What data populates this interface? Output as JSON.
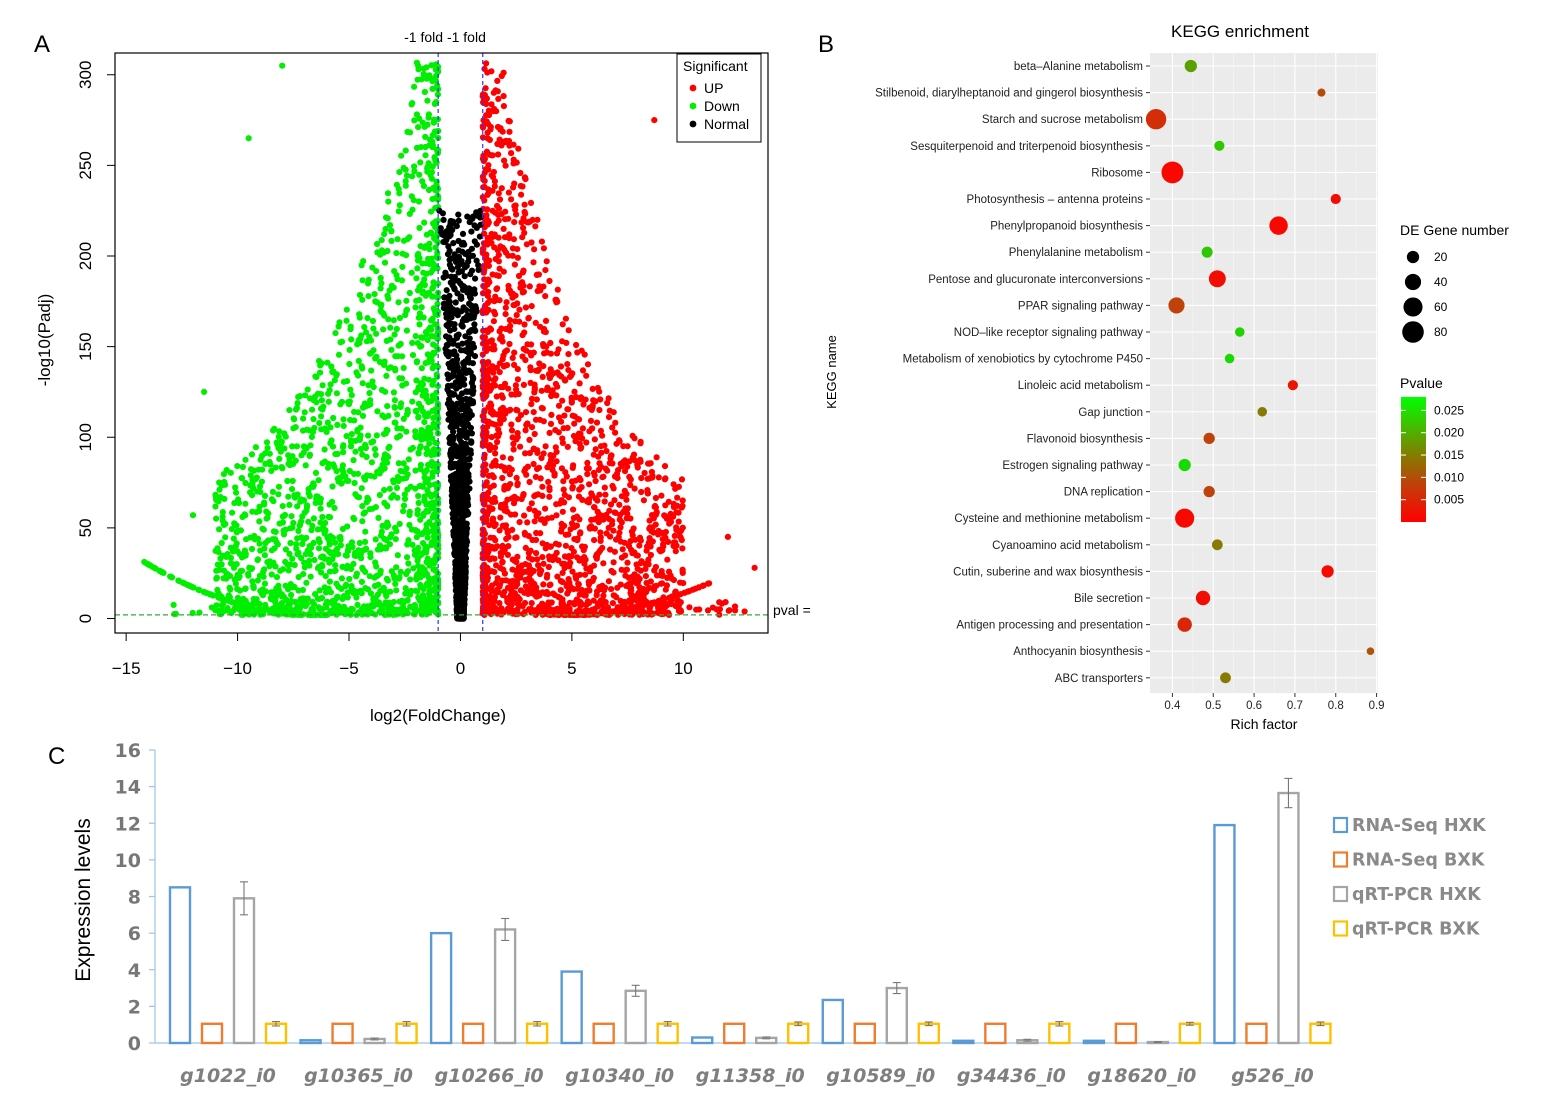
{
  "chart_data": [
    {
      "panel": "A",
      "type": "scatter",
      "subtype": "volcano",
      "top_label": "-1 fold -1 fold",
      "xlabel": "log2(FoldChange)",
      "ylabel": "-log10(Padj)",
      "xlim": [
        -15.5,
        13.8
      ],
      "ylim": [
        -8,
        312
      ],
      "x_ticks": [
        -15,
        -10,
        -5,
        0,
        5,
        10
      ],
      "x_tick_labels": [
        "−15",
        "−10",
        "−5",
        "0",
        "5",
        "10"
      ],
      "y_ticks": [
        0,
        50,
        100,
        150,
        200,
        250,
        300
      ],
      "fold_thresholds": [
        -1,
        1
      ],
      "pvalue_threshold": 2,
      "pval_label": "pval =",
      "legend": {
        "title": "Significant",
        "items": [
          "UP",
          "Down",
          "Normal"
        ],
        "position": "top-right"
      },
      "colors": {
        "UP": "#ff0000",
        "Down": "#00ee00",
        "Normal": "#000000",
        "fold_line": "#3333ff",
        "pval_line": "#33aa33"
      },
      "series_summary": {
        "UP": "log2FC > 1, -log10(Padj) up to ~305, x up to ~13",
        "Down": "log2FC < -1, -log10(Padj) up to ~305, x down to ~-14",
        "Normal": "-1 <= log2FC <= 1, -log10(Padj) up to ~225"
      }
    },
    {
      "panel": "B",
      "type": "scatter",
      "subtype": "bubble",
      "title": "KEGG enrichment",
      "xlabel": "Rich factor",
      "ylabel": "KEGG name",
      "xlim": [
        0.35,
        0.9
      ],
      "x_ticks": [
        0.4,
        0.5,
        0.6,
        0.7,
        0.8,
        0.9
      ],
      "x_tick_labels": [
        "0.4",
        "0.5",
        "0.6",
        "0.7",
        "0.8",
        "0.9"
      ],
      "size_legend_title": "DE Gene number",
      "size_legend": [
        20,
        40,
        60,
        80
      ],
      "color_legend_title": "Pvalue",
      "color_legend_ticks": [
        0.025,
        0.02,
        0.015,
        0.01,
        0.005
      ],
      "color_legend_labels": [
        "0.025",
        "0.020",
        "0.015",
        "0.010",
        "0.005"
      ],
      "color_range": [
        0.0,
        0.028
      ],
      "terms": [
        {
          "name": "beta–Alanine metabolism",
          "rich": 0.445,
          "genes": 20,
          "p": 0.02
        },
        {
          "name": "Stilbenoid, diarylheptanoid and gingerol biosynthesis",
          "rich": 0.765,
          "genes": 6,
          "p": 0.011
        },
        {
          "name": "Starch and sucrose metabolism",
          "rich": 0.36,
          "genes": 70,
          "p": 0.007
        },
        {
          "name": "Sesquiterpenoid and triterpenoid biosynthesis",
          "rich": 0.515,
          "genes": 12,
          "p": 0.024
        },
        {
          "name": "Ribosome",
          "rich": 0.4,
          "genes": 82,
          "p": 0.001
        },
        {
          "name": "Photosynthesis – antenna proteins",
          "rich": 0.8,
          "genes": 12,
          "p": 0.002
        },
        {
          "name": "Phenylpropanoid biosynthesis",
          "rich": 0.66,
          "genes": 55,
          "p": 0.001
        },
        {
          "name": "Phenylalanine metabolism",
          "rich": 0.485,
          "genes": 15,
          "p": 0.024
        },
        {
          "name": "Pentose and glucuronate interconversions",
          "rich": 0.51,
          "genes": 45,
          "p": 0.002
        },
        {
          "name": "PPAR signaling pathway",
          "rich": 0.41,
          "genes": 40,
          "p": 0.01
        },
        {
          "name": "NOD–like receptor signaling pathway",
          "rich": 0.565,
          "genes": 10,
          "p": 0.025
        },
        {
          "name": "Metabolism of xenobiotics by cytochrome P450",
          "rich": 0.54,
          "genes": 10,
          "p": 0.026
        },
        {
          "name": "Linoleic acid metabolism",
          "rich": 0.695,
          "genes": 12,
          "p": 0.003
        },
        {
          "name": "Gap junction",
          "rich": 0.62,
          "genes": 10,
          "p": 0.016
        },
        {
          "name": "Flavonoid biosynthesis",
          "rich": 0.49,
          "genes": 16,
          "p": 0.01
        },
        {
          "name": "Estrogen signaling pathway",
          "rich": 0.43,
          "genes": 20,
          "p": 0.026
        },
        {
          "name": "DNA replication",
          "rich": 0.49,
          "genes": 16,
          "p": 0.01
        },
        {
          "name": "Cysteine and methionine metabolism",
          "rich": 0.43,
          "genes": 60,
          "p": 0.001
        },
        {
          "name": "Cyanoamino acid metabolism",
          "rich": 0.51,
          "genes": 14,
          "p": 0.016
        },
        {
          "name": "Cutin, suberine and wax biosynthesis",
          "rich": 0.78,
          "genes": 20,
          "p": 0.001
        },
        {
          "name": "Bile secretion",
          "rich": 0.475,
          "genes": 30,
          "p": 0.002
        },
        {
          "name": "Antigen processing and presentation",
          "rich": 0.43,
          "genes": 30,
          "p": 0.006
        },
        {
          "name": "Anthocyanin biosynthesis",
          "rich": 0.885,
          "genes": 5,
          "p": 0.012
        },
        {
          "name": "ABC transporters",
          "rich": 0.53,
          "genes": 14,
          "p": 0.016
        }
      ]
    },
    {
      "panel": "C",
      "type": "bar",
      "ylabel": "Expression levels",
      "ylim": [
        0,
        16
      ],
      "y_ticks": [
        0,
        2,
        4,
        6,
        8,
        10,
        12,
        14,
        16
      ],
      "categories": [
        "g1022_i0",
        "g10365_i0",
        "g10266_i0",
        "g10340_i0",
        "g11358_i0",
        "g10589_i0",
        "g34436_i0",
        "g18620_i0",
        "g526_i0"
      ],
      "series": [
        {
          "name": "RNA-Seq HXK",
          "color": "#5b9bd5",
          "values": [
            8.5,
            0.15,
            6.0,
            3.9,
            0.3,
            2.35,
            0.12,
            0.12,
            11.9
          ]
        },
        {
          "name": "RNA-Seq BXK",
          "color": "#ed7d31",
          "values": [
            1.05,
            1.05,
            1.05,
            1.05,
            1.05,
            1.05,
            1.05,
            1.05,
            1.05
          ]
        },
        {
          "name": "qRT-PCR HXK",
          "color": "#a5a5a5",
          "values": [
            7.9,
            0.22,
            6.2,
            2.85,
            0.28,
            3.0,
            0.15,
            0.05,
            13.65
          ],
          "errors": [
            0.9,
            0.05,
            0.6,
            0.3,
            0.05,
            0.3,
            0.05,
            0.02,
            0.8
          ]
        },
        {
          "name": "qRT-PCR BXK",
          "color": "#ffc000",
          "values": [
            1.05,
            1.05,
            1.05,
            1.05,
            1.05,
            1.05,
            1.05,
            1.05,
            1.05
          ],
          "errors": [
            0.12,
            0.12,
            0.12,
            0.12,
            0.1,
            0.1,
            0.12,
            0.08,
            0.1
          ]
        }
      ]
    }
  ],
  "panel_labels": {
    "a": "A",
    "b": "B",
    "c": "C"
  }
}
